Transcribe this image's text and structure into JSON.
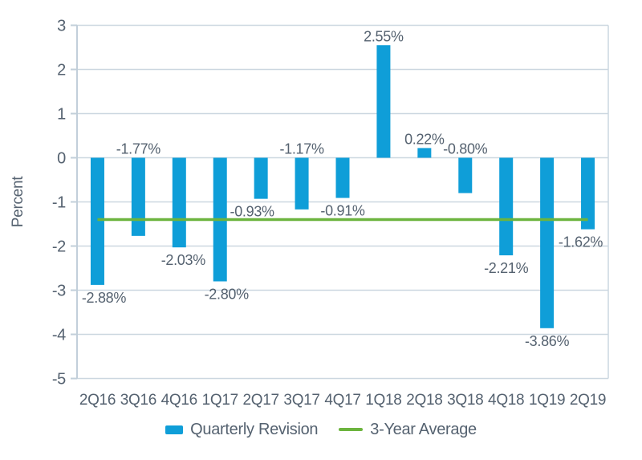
{
  "chart_data": {
    "type": "bar",
    "title": "",
    "xlabel": "",
    "ylabel": "Percent",
    "ylim": [
      -5,
      3
    ],
    "yticks": [
      3,
      2,
      1,
      0,
      -1,
      -2,
      -3,
      -4,
      -5
    ],
    "grid": true,
    "legend_position": "bottom",
    "categories": [
      "2Q16",
      "3Q16",
      "4Q16",
      "1Q17",
      "2Q17",
      "3Q17",
      "4Q17",
      "1Q18",
      "2Q18",
      "3Q18",
      "4Q18",
      "1Q19",
      "2Q19"
    ],
    "series": [
      {
        "name": "Quarterly Revision",
        "type": "bar",
        "color": "#0f9ed8",
        "values": [
          -2.88,
          -1.77,
          -2.03,
          -2.8,
          -0.93,
          -1.17,
          -0.91,
          2.55,
          0.22,
          -0.8,
          -2.21,
          -3.86,
          -1.62
        ],
        "data_labels": [
          "-2.88%",
          "-1.77%",
          "-2.03%",
          "-2.80%",
          "-0.93%",
          "-1.17%",
          "-0.91%",
          "2.55%",
          "0.22%",
          "-0.80%",
          "-2.21%",
          "-3.86%",
          "-1.62%"
        ],
        "labels_above_axis": [
          false,
          true,
          false,
          false,
          false,
          true,
          false,
          false,
          false,
          true,
          false,
          false,
          false
        ]
      },
      {
        "name": "3-Year Average",
        "type": "line",
        "color": "#6cb43e",
        "value": -1.4
      }
    ]
  },
  "style": {
    "text_color": "#556270",
    "grid_color": "#ccd7e0",
    "axis_color": "#c2cfda",
    "background": "#ffffff"
  }
}
